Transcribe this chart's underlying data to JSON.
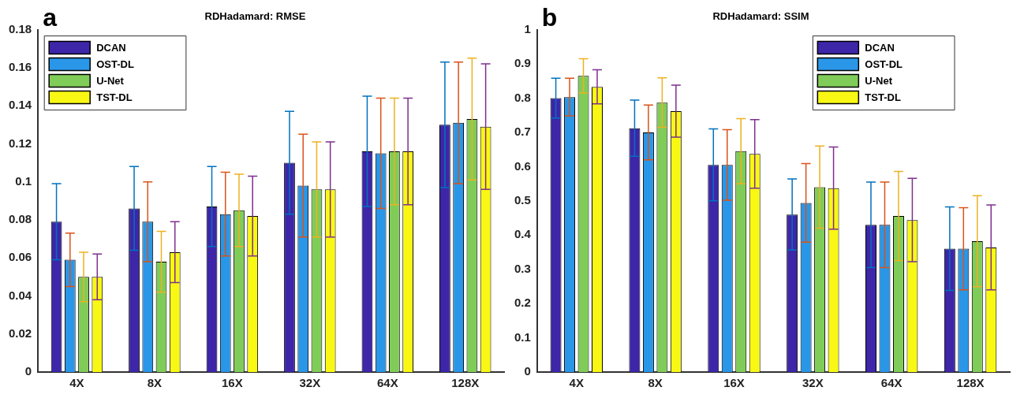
{
  "chart_data": [
    {
      "type": "bar",
      "title": "RDHadamard: RMSE",
      "annotations": [
        "a"
      ],
      "categories": [
        "4X",
        "8X",
        "16X",
        "32X",
        "64X",
        "128X"
      ],
      "ylim": [
        0,
        0.18
      ],
      "yticks": [
        0,
        0.02,
        0.04,
        0.06,
        0.08,
        0.1,
        0.12,
        0.14,
        0.16,
        0.18
      ],
      "grid": false,
      "legend": "top left",
      "series": [
        {
          "name": "DCAN",
          "color": "#3d26a8",
          "values": [
            0.079,
            0.086,
            0.087,
            0.11,
            0.116,
            0.13
          ],
          "errors": [
            0.02,
            0.022,
            0.021,
            0.027,
            0.029,
            0.033
          ]
        },
        {
          "name": "OST-DL",
          "color": "#2a96e8",
          "values": [
            0.059,
            0.079,
            0.083,
            0.098,
            0.115,
            0.131
          ],
          "errors": [
            0.014,
            0.021,
            0.022,
            0.027,
            0.029,
            0.032
          ]
        },
        {
          "name": "U-Net",
          "color": "#80cc58",
          "values": [
            0.05,
            0.058,
            0.085,
            0.096,
            0.116,
            0.133
          ],
          "errors": [
            0.013,
            0.016,
            0.019,
            0.025,
            0.028,
            0.032
          ]
        },
        {
          "name": "TST-DL",
          "color": "#f8f814",
          "values": [
            0.05,
            0.063,
            0.082,
            0.096,
            0.116,
            0.129
          ],
          "errors": [
            0.012,
            0.016,
            0.021,
            0.025,
            0.028,
            0.033
          ]
        }
      ]
    },
    {
      "type": "bar",
      "title": "RDHadamard: SSIM",
      "annotations": [
        "b"
      ],
      "categories": [
        "4X",
        "8X",
        "16X",
        "32X",
        "64X",
        "128X"
      ],
      "ylim": [
        0,
        1
      ],
      "yticks": [
        0,
        0.1,
        0.2,
        0.3,
        0.4,
        0.5,
        0.6,
        0.7,
        0.8,
        0.9,
        1
      ],
      "grid": false,
      "legend": "top right",
      "series": [
        {
          "name": "DCAN",
          "color": "#3d26a8",
          "values": [
            0.8,
            0.712,
            0.605,
            0.46,
            0.43,
            0.36
          ],
          "errors": [
            0.058,
            0.082,
            0.105,
            0.104,
            0.125,
            0.122
          ]
        },
        {
          "name": "OST-DL",
          "color": "#2a96e8",
          "values": [
            0.803,
            0.7,
            0.605,
            0.494,
            0.43,
            0.36
          ],
          "errors": [
            0.055,
            0.08,
            0.103,
            0.115,
            0.125,
            0.12
          ]
        },
        {
          "name": "U-Net",
          "color": "#80cc58",
          "values": [
            0.865,
            0.787,
            0.645,
            0.54,
            0.456,
            0.382
          ],
          "errors": [
            0.05,
            0.072,
            0.095,
            0.12,
            0.13,
            0.133
          ]
        },
        {
          "name": "TST-DL",
          "color": "#f8f814",
          "values": [
            0.833,
            0.762,
            0.637,
            0.537,
            0.444,
            0.364
          ],
          "errors": [
            0.05,
            0.076,
            0.1,
            0.12,
            0.122,
            0.124
          ]
        }
      ]
    }
  ]
}
